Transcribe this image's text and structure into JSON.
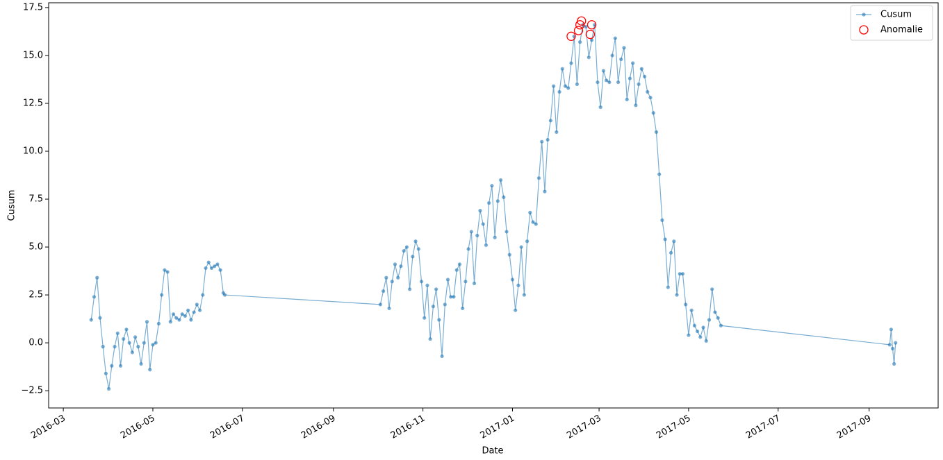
{
  "chart_data": {
    "type": "line",
    "xlabel": "Date",
    "ylabel": "Cusum",
    "xlim": [
      "2016-02-20",
      "2017-10-18"
    ],
    "ylim": [
      -3.4,
      17.75
    ],
    "xticks": [
      "2016-03",
      "2016-05",
      "2016-07",
      "2016-09",
      "2016-11",
      "2017-01",
      "2017-03",
      "2017-05",
      "2017-07",
      "2017-09"
    ],
    "yticks": [
      {
        "value": -2.5,
        "label": "−2.5"
      },
      {
        "value": 0,
        "label": "0.0"
      },
      2.5,
      {
        "value": 5,
        "label": "5.0"
      },
      7.5,
      {
        "value": 10,
        "label": "10.0"
      },
      12.5,
      {
        "value": 15,
        "label": "15.0"
      },
      17.5
    ],
    "legend": "upper right",
    "series": [
      {
        "name": "Cusum",
        "color": "#1f77b4",
        "marker": "dot",
        "x": [
          "2016-03-20",
          "2016-03-22",
          "2016-03-24",
          "2016-03-26",
          "2016-03-28",
          "2016-03-30",
          "2016-04-01",
          "2016-04-03",
          "2016-04-05",
          "2016-04-07",
          "2016-04-09",
          "2016-04-11",
          "2016-04-13",
          "2016-04-15",
          "2016-04-17",
          "2016-04-19",
          "2016-04-21",
          "2016-04-23",
          "2016-04-25",
          "2016-04-27",
          "2016-04-29",
          "2016-05-01",
          "2016-05-03",
          "2016-05-05",
          "2016-05-07",
          "2016-05-09",
          "2016-05-11",
          "2016-05-13",
          "2016-05-15",
          "2016-05-17",
          "2016-05-19",
          "2016-05-21",
          "2016-05-23",
          "2016-05-25",
          "2016-05-27",
          "2016-05-29",
          "2016-05-31",
          "2016-06-02",
          "2016-06-04",
          "2016-06-06",
          "2016-06-08",
          "2016-06-10",
          "2016-06-12",
          "2016-06-14",
          "2016-06-16",
          "2016-06-18",
          "2016-06-19",
          "2016-10-03",
          "2016-10-05",
          "2016-10-07",
          "2016-10-09",
          "2016-10-11",
          "2016-10-13",
          "2016-10-15",
          "2016-10-17",
          "2016-10-19",
          "2016-10-21",
          "2016-10-23",
          "2016-10-25",
          "2016-10-27",
          "2016-10-29",
          "2016-10-31",
          "2016-11-02",
          "2016-11-04",
          "2016-11-06",
          "2016-11-08",
          "2016-11-10",
          "2016-11-12",
          "2016-11-14",
          "2016-11-16",
          "2016-11-18",
          "2016-11-20",
          "2016-11-22",
          "2016-11-24",
          "2016-11-26",
          "2016-11-28",
          "2016-11-30",
          "2016-12-02",
          "2016-12-04",
          "2016-12-06",
          "2016-12-08",
          "2016-12-10",
          "2016-12-12",
          "2016-12-14",
          "2016-12-16",
          "2016-12-18",
          "2016-12-20",
          "2016-12-22",
          "2016-12-24",
          "2016-12-26",
          "2016-12-28",
          "2016-12-30",
          "2017-01-01",
          "2017-01-03",
          "2017-01-05",
          "2017-01-07",
          "2017-01-09",
          "2017-01-11",
          "2017-01-13",
          "2017-01-15",
          "2017-01-17",
          "2017-01-19",
          "2017-01-21",
          "2017-01-23",
          "2017-01-25",
          "2017-01-27",
          "2017-01-29",
          "2017-01-31",
          "2017-02-02",
          "2017-02-04",
          "2017-02-06",
          "2017-02-08",
          "2017-02-10",
          "2017-02-12",
          "2017-02-14",
          "2017-02-16",
          "2017-02-18",
          "2017-02-20",
          "2017-02-22",
          "2017-02-24",
          "2017-02-26",
          "2017-02-28",
          "2017-03-02",
          "2017-03-04",
          "2017-03-06",
          "2017-03-08",
          "2017-03-10",
          "2017-03-12",
          "2017-03-14",
          "2017-03-16",
          "2017-03-18",
          "2017-03-20",
          "2017-03-22",
          "2017-03-24",
          "2017-03-26",
          "2017-03-28",
          "2017-03-30",
          "2017-04-01",
          "2017-04-03",
          "2017-04-05",
          "2017-04-07",
          "2017-04-09",
          "2017-04-11",
          "2017-04-13",
          "2017-04-15",
          "2017-04-17",
          "2017-04-19",
          "2017-04-21",
          "2017-04-23",
          "2017-04-25",
          "2017-04-27",
          "2017-04-29",
          "2017-05-01",
          "2017-05-03",
          "2017-05-05",
          "2017-05-07",
          "2017-05-09",
          "2017-05-11",
          "2017-05-13",
          "2017-05-15",
          "2017-05-17",
          "2017-05-19",
          "2017-05-21",
          "2017-05-23",
          "2017-09-15",
          "2017-09-16",
          "2017-09-17",
          "2017-09-18",
          "2017-09-19"
        ],
        "values": [
          1.2,
          2.4,
          3.4,
          1.3,
          -0.2,
          -1.6,
          -2.4,
          -1.2,
          -0.2,
          0.5,
          -1.2,
          0.2,
          0.7,
          0.0,
          -0.5,
          0.3,
          -0.2,
          -1.1,
          0.0,
          1.1,
          -1.4,
          -0.1,
          0.0,
          1.0,
          2.5,
          3.8,
          3.7,
          1.1,
          1.5,
          1.3,
          1.2,
          1.5,
          1.4,
          1.7,
          1.2,
          1.6,
          2.0,
          1.7,
          2.5,
          3.9,
          4.2,
          3.9,
          4.0,
          4.1,
          3.8,
          2.6,
          2.5,
          2.0,
          2.7,
          3.4,
          1.8,
          3.2,
          4.1,
          3.4,
          4.0,
          4.8,
          5.0,
          2.8,
          4.5,
          5.3,
          4.9,
          3.2,
          1.3,
          3.0,
          0.2,
          1.9,
          2.8,
          1.2,
          -0.7,
          2.0,
          3.3,
          2.4,
          2.4,
          3.8,
          4.1,
          1.8,
          3.2,
          4.9,
          5.8,
          3.1,
          5.6,
          6.9,
          6.2,
          5.1,
          7.3,
          8.2,
          5.5,
          7.4,
          8.5,
          7.6,
          5.8,
          4.6,
          3.3,
          1.7,
          3.0,
          5.0,
          2.5,
          5.3,
          6.8,
          6.3,
          6.2,
          8.6,
          10.5,
          7.9,
          10.6,
          11.6,
          13.4,
          11.0,
          13.1,
          14.3,
          13.4,
          13.3,
          14.6,
          16.0,
          13.5,
          15.7,
          16.6,
          16.5,
          14.9,
          15.8,
          16.6,
          13.6,
          12.3,
          14.2,
          13.7,
          13.6,
          15.0,
          15.9,
          13.6,
          14.8,
          15.4,
          12.7,
          13.8,
          14.6,
          12.4,
          13.5,
          14.3,
          13.9,
          13.1,
          12.8,
          12.0,
          11.0,
          8.8,
          6.4,
          5.4,
          2.9,
          4.7,
          5.3,
          2.5,
          3.6,
          3.6,
          2.0,
          0.4,
          1.7,
          0.9,
          0.6,
          0.3,
          0.8,
          0.1,
          1.2,
          2.8,
          1.6,
          1.3,
          0.9,
          -0.1,
          0.7,
          -0.3,
          -1.1,
          0.0
        ]
      },
      {
        "name": "Anomalie",
        "color": "#ff0000",
        "marker": "ring",
        "x": [
          "2017-02-10",
          "2017-02-15",
          "2017-02-16",
          "2017-02-17",
          "2017-02-23",
          "2017-02-24"
        ],
        "values": [
          16.0,
          16.3,
          16.6,
          16.8,
          16.1,
          16.6
        ]
      }
    ]
  }
}
